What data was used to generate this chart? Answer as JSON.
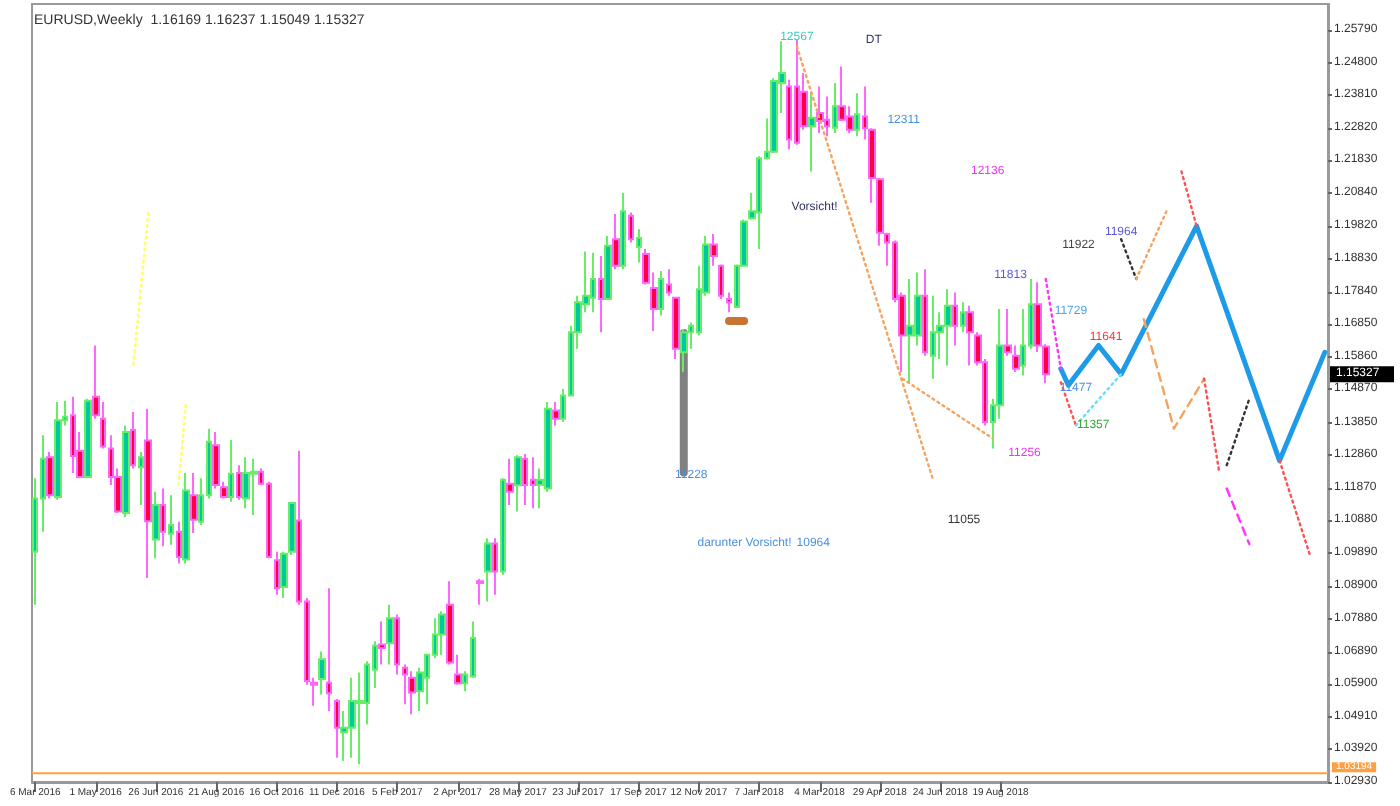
{
  "chart_data": {
    "type": "candlestick",
    "title": "EURUSD,Weekly  1.16169 1.16237 1.15049 1.15327",
    "x": [
      "2016-03-06",
      "2016-03-13",
      "2016-03-20",
      "2016-03-27",
      "2016-04-03",
      "2016-04-10",
      "2016-04-17",
      "2016-04-24",
      "2016-05-01",
      "2016-05-08",
      "2016-05-15",
      "2016-05-22",
      "2016-05-29",
      "2016-06-05",
      "2016-06-12",
      "2016-06-19",
      "2016-06-26",
      "2016-07-03",
      "2016-07-10",
      "2016-07-17",
      "2016-07-24",
      "2016-07-31",
      "2016-08-07",
      "2016-08-14",
      "2016-08-21",
      "2016-08-28",
      "2016-09-04",
      "2016-09-11",
      "2016-09-18",
      "2016-09-25",
      "2016-10-02",
      "2016-10-09",
      "2016-10-16",
      "2016-10-23",
      "2016-10-30",
      "2016-11-06",
      "2016-11-13",
      "2016-11-20",
      "2016-11-27",
      "2016-12-04",
      "2016-12-11",
      "2016-12-18",
      "2016-12-25",
      "2017-01-01",
      "2017-01-08",
      "2017-01-15",
      "2017-01-22",
      "2017-01-29",
      "2017-02-05",
      "2017-02-12",
      "2017-02-19",
      "2017-02-26",
      "2017-03-05",
      "2017-03-12",
      "2017-03-19",
      "2017-03-26",
      "2017-04-02",
      "2017-04-09",
      "2017-04-16",
      "2017-04-23",
      "2017-04-30",
      "2017-05-07",
      "2017-05-14",
      "2017-05-21",
      "2017-05-28",
      "2017-06-04",
      "2017-06-11",
      "2017-06-18",
      "2017-06-25",
      "2017-07-02",
      "2017-07-09",
      "2017-07-16",
      "2017-07-23",
      "2017-07-30",
      "2017-08-06",
      "2017-08-13",
      "2017-08-20",
      "2017-08-27",
      "2017-09-03",
      "2017-09-10",
      "2017-09-17",
      "2017-09-24",
      "2017-10-01",
      "2017-10-08",
      "2017-10-15",
      "2017-10-22",
      "2017-10-29",
      "2017-11-05",
      "2017-11-12",
      "2017-11-19",
      "2017-11-26",
      "2017-12-03",
      "2017-12-10",
      "2017-12-17",
      "2017-12-24",
      "2017-12-31",
      "2018-01-07",
      "2018-01-14",
      "2018-01-21",
      "2018-01-28",
      "2018-02-04",
      "2018-02-11",
      "2018-02-18",
      "2018-02-25",
      "2018-03-04",
      "2018-03-11",
      "2018-03-18",
      "2018-03-25",
      "2018-04-01",
      "2018-04-08",
      "2018-04-15",
      "2018-04-22",
      "2018-04-29",
      "2018-05-06",
      "2018-05-13",
      "2018-05-20",
      "2018-05-27",
      "2018-06-03",
      "2018-06-10",
      "2018-06-17",
      "2018-06-24",
      "2018-07-01",
      "2018-07-08",
      "2018-07-15",
      "2018-07-22",
      "2018-07-29",
      "2018-08-05",
      "2018-08-12",
      "2018-08-19",
      "2018-08-26",
      "2018-09-02",
      "2018-09-09",
      "2018-09-16",
      "2018-09-23",
      "2018-09-30"
    ],
    "ohlc": [
      [
        1.0993,
        1.1216,
        1.0832,
        1.1155
      ],
      [
        1.1155,
        1.1347,
        1.1054,
        1.1276
      ],
      [
        1.128,
        1.1296,
        1.1155,
        1.1165
      ],
      [
        1.1159,
        1.1448,
        1.1151,
        1.1393
      ],
      [
        1.1393,
        1.1452,
        1.1377,
        1.1403
      ],
      [
        1.1408,
        1.1464,
        1.1232,
        1.1284
      ],
      [
        1.13,
        1.1357,
        1.1216,
        1.122
      ],
      [
        1.122,
        1.1458,
        1.1216,
        1.1452
      ],
      [
        1.1464,
        1.162,
        1.1397,
        1.1408
      ],
      [
        1.1397,
        1.1448,
        1.1307,
        1.1313
      ],
      [
        1.1307,
        1.1347,
        1.1196,
        1.122
      ],
      [
        1.122,
        1.1246,
        1.1111,
        1.1115
      ],
      [
        1.1111,
        1.1377,
        1.1098,
        1.1357
      ],
      [
        1.1363,
        1.1418,
        1.1246,
        1.1256
      ],
      [
        1.125,
        1.1296,
        1.1135,
        1.128
      ],
      [
        1.1331,
        1.1428,
        1.0913,
        1.1086
      ],
      [
        1.103,
        1.1175,
        1.0973,
        1.1135
      ],
      [
        1.1135,
        1.1185,
        1.101,
        1.1054
      ],
      [
        1.1048,
        1.1165,
        1.1014,
        1.1074
      ],
      [
        1.1054,
        1.1084,
        1.0957,
        1.0977
      ],
      [
        1.0969,
        1.1232,
        1.0957,
        1.1179
      ],
      [
        1.1165,
        1.1232,
        1.105,
        1.109
      ],
      [
        1.1084,
        1.1216,
        1.1074,
        1.1165
      ],
      [
        1.1165,
        1.1367,
        1.1155,
        1.1327
      ],
      [
        1.1317,
        1.1357,
        1.1185,
        1.1196
      ],
      [
        1.1189,
        1.1206,
        1.1155,
        1.1159
      ],
      [
        1.1159,
        1.1333,
        1.1145,
        1.123
      ],
      [
        1.1232,
        1.1256,
        1.1151,
        1.1159
      ],
      [
        1.1155,
        1.128,
        1.1125,
        1.1232
      ],
      [
        1.123,
        1.1276,
        1.1105,
        1.1236
      ],
      [
        1.1236,
        1.1246,
        1.1196,
        1.12
      ],
      [
        1.12,
        1.1206,
        1.0973,
        1.0977
      ],
      [
        1.0967,
        1.0993,
        1.0862,
        1.0882
      ],
      [
        1.0886,
        1.0993,
        1.0852,
        1.0987
      ],
      [
        1.0993,
        1.1145,
        1.0983,
        1.1141
      ],
      [
        1.1088,
        1.13,
        1.0832,
        1.0842
      ],
      [
        1.0842,
        1.0852,
        1.0589,
        1.06
      ],
      [
        1.0595,
        1.061,
        1.0525,
        1.0589
      ],
      [
        1.0606,
        1.069,
        1.0559,
        1.0666
      ],
      [
        1.0595,
        1.0882,
        1.0509,
        1.0563
      ],
      [
        1.0539,
        1.0545,
        1.0367,
        1.0458
      ],
      [
        1.0444,
        1.0509,
        1.0357,
        1.0458
      ],
      [
        1.0458,
        1.061,
        1.0367,
        1.0539
      ],
      [
        1.0533,
        1.0626,
        1.0347,
        1.0539
      ],
      [
        1.0533,
        1.066,
        1.0468,
        1.065
      ],
      [
        1.0634,
        1.0721,
        1.0579,
        1.0707
      ],
      [
        1.0711,
        1.0781,
        1.065,
        1.07
      ],
      [
        1.0715,
        1.0832,
        1.065,
        1.0791
      ],
      [
        1.0791,
        1.0802,
        1.062,
        1.065
      ],
      [
        1.064,
        1.065,
        1.0529,
        1.062
      ],
      [
        1.061,
        1.063,
        1.0499,
        1.0565
      ],
      [
        1.0569,
        1.064,
        1.0509,
        1.0626
      ],
      [
        1.061,
        1.068,
        1.0529,
        1.068
      ],
      [
        1.068,
        1.0791,
        1.067,
        1.0741
      ],
      [
        1.0741,
        1.0812,
        1.068,
        1.0802
      ],
      [
        1.0832,
        1.0903,
        1.065,
        1.0656
      ],
      [
        1.062,
        1.068,
        1.0589,
        1.0593
      ],
      [
        1.0593,
        1.063,
        1.0569,
        1.062
      ],
      [
        1.0614,
        1.0781,
        1.061,
        1.0731
      ],
      [
        1.0903,
        1.091,
        1.0832,
        1.0898
      ],
      [
        1.0933,
        1.1034,
        1.0842,
        1.1018
      ],
      [
        1.1018,
        1.1034,
        1.0862,
        1.0933
      ],
      [
        1.0933,
        1.1216,
        1.0923,
        1.1212
      ],
      [
        1.12,
        1.1276,
        1.1135,
        1.1175
      ],
      [
        1.1195,
        1.1286,
        1.1115,
        1.128
      ],
      [
        1.1276,
        1.129,
        1.1135,
        1.1196
      ],
      [
        1.1212,
        1.128,
        1.1125,
        1.1196
      ],
      [
        1.1196,
        1.1246,
        1.1125,
        1.1212
      ],
      [
        1.1185,
        1.1448,
        1.1175,
        1.1428
      ],
      [
        1.1422,
        1.1448,
        1.1377,
        1.1397
      ],
      [
        1.1397,
        1.1488,
        1.1387,
        1.1468
      ],
      [
        1.1468,
        1.168,
        1.1468,
        1.166
      ],
      [
        1.166,
        1.1771,
        1.161,
        1.1751
      ],
      [
        1.1745,
        1.1906,
        1.1721,
        1.1771
      ],
      [
        1.1765,
        1.1902,
        1.1721,
        1.1822
      ],
      [
        1.1822,
        1.1892,
        1.166,
        1.1761
      ],
      [
        1.1761,
        1.1953,
        1.1761,
        1.1923
      ],
      [
        1.1943,
        1.202,
        1.1852,
        1.1862
      ],
      [
        1.1862,
        1.2084,
        1.1852,
        1.2028
      ],
      [
        1.2014,
        1.2024,
        1.1933,
        1.1943
      ],
      [
        1.1919,
        1.1973,
        1.1872,
        1.1947
      ],
      [
        1.1898,
        1.1913,
        1.1805,
        1.1811
      ],
      [
        1.1795,
        1.1842,
        1.1664,
        1.1731
      ],
      [
        1.1731,
        1.1846,
        1.1711,
        1.1822
      ],
      [
        1.1805,
        1.1852,
        1.1771,
        1.1781
      ],
      [
        1.1765,
        1.1765,
        1.1579,
        1.161
      ],
      [
        1.1599,
        1.167,
        1.1539,
        1.166
      ],
      [
        1.166,
        1.169,
        1.161,
        1.168
      ],
      [
        1.166,
        1.1862,
        1.165,
        1.1791
      ],
      [
        1.1781,
        1.1953,
        1.1771,
        1.1927
      ],
      [
        1.1927,
        1.1959,
        1.1862,
        1.1892
      ],
      [
        1.1862,
        1.1866,
        1.1761,
        1.1771
      ],
      [
        1.1761,
        1.1781,
        1.1721,
        1.1751
      ],
      [
        1.1737,
        1.1866,
        1.1737,
        1.1862
      ],
      [
        1.1862,
        1.2003,
        1.1862,
        1.1997
      ],
      [
        1.2007,
        1.2084,
        1.2003,
        1.2028
      ],
      [
        1.2024,
        1.2195,
        1.1913,
        1.2189
      ],
      [
        1.2189,
        1.231,
        1.2185,
        1.2209
      ],
      [
        1.2209,
        1.2432,
        1.2205,
        1.2424
      ],
      [
        1.2418,
        1.2545,
        1.2327,
        1.2448
      ],
      [
        1.2407,
        1.2428,
        1.2216,
        1.2246
      ],
      [
        1.2407,
        1.2549,
        1.223,
        1.2236
      ],
      [
        1.2391,
        1.2448,
        1.2276,
        1.2286
      ],
      [
        1.2286,
        1.2387,
        1.2149,
        1.2312
      ],
      [
        1.2327,
        1.2407,
        1.2266,
        1.2302
      ],
      [
        1.2306,
        1.2377,
        1.2256,
        1.2286
      ],
      [
        1.2282,
        1.2418,
        1.2266,
        1.2347
      ],
      [
        1.2347,
        1.2468,
        1.2302,
        1.2306
      ],
      [
        1.2316,
        1.2347,
        1.2266,
        1.2276
      ],
      [
        1.2276,
        1.2387,
        1.2256,
        1.2323
      ],
      [
        1.2316,
        1.2407,
        1.2246,
        1.228
      ],
      [
        1.2276,
        1.228,
        1.2054,
        1.2129
      ],
      [
        1.2125,
        1.2129,
        1.1923,
        1.1963
      ],
      [
        1.1959,
        1.1963,
        1.1862,
        1.1933
      ],
      [
        1.1933,
        1.1939,
        1.1751,
        1.1761
      ],
      [
        1.1771,
        1.1781,
        1.1539,
        1.165
      ],
      [
        1.165,
        1.1822,
        1.1509,
        1.168
      ],
      [
        1.165,
        1.1842,
        1.162,
        1.1771
      ],
      [
        1.1771,
        1.1852,
        1.1589,
        1.1599
      ],
      [
        1.1589,
        1.1771,
        1.1519,
        1.166
      ],
      [
        1.166,
        1.1721,
        1.1579,
        1.168
      ],
      [
        1.168,
        1.1791,
        1.1559,
        1.1741
      ],
      [
        1.1741,
        1.1781,
        1.162,
        1.168
      ],
      [
        1.168,
        1.1751,
        1.166,
        1.1721
      ],
      [
        1.1721,
        1.1741,
        1.1559,
        1.166
      ],
      [
        1.165,
        1.166,
        1.1559,
        1.1569
      ],
      [
        1.1569,
        1.1579,
        1.1377,
        1.1387
      ],
      [
        1.1387,
        1.1458,
        1.1307,
        1.1438
      ],
      [
        1.1438,
        1.1731,
        1.1397,
        1.162
      ],
      [
        1.162,
        1.1731,
        1.1589,
        1.1599
      ],
      [
        1.1589,
        1.162,
        1.1539,
        1.1549
      ],
      [
        1.1559,
        1.1731,
        1.1529,
        1.162
      ],
      [
        1.162,
        1.1822,
        1.161,
        1.1745
      ],
      [
        1.1745,
        1.1812,
        1.16,
        1.162
      ],
      [
        1.16169,
        1.16237,
        1.15049,
        1.15327
      ]
    ],
    "series": [
      {
        "type": "line",
        "color": "#1e9be8",
        "line_style": "solid",
        "x": [
          "2018-10-14",
          "2018-10-21",
          "2018-11-18",
          "2018-12-09",
          "2019-02-17",
          "2019-05-05",
          "2019-06-16"
        ],
        "values": [
          1.1549,
          1.1499,
          1.162,
          1.1533,
          1.1983,
          1.127,
          1.1599
        ]
      },
      {
        "type": "line",
        "color": "#f4a460",
        "line_style": "dotted",
        "x": [
          "2018-02-11",
          "2018-06-17"
        ],
        "values": [
          1.2529,
          1.1216
        ]
      },
      {
        "type": "line",
        "color": "#f4a460",
        "line_style": "dotted",
        "x": [
          "2018-05-20",
          "2018-08-12"
        ],
        "values": [
          1.1519,
          1.1337
        ]
      },
      {
        "type": "line",
        "color": "#ff33ff",
        "line_style": "dotted",
        "x": [
          "2018-09-30",
          "2018-10-14"
        ],
        "values": [
          1.1822,
          1.1549
        ]
      },
      {
        "type": "line",
        "color": "#ff5050",
        "line_style": "dotted",
        "x": [
          "2018-10-14",
          "2018-10-28"
        ],
        "values": [
          1.1508,
          1.1377
        ]
      },
      {
        "type": "line",
        "color": "#66e0ff",
        "line_style": "dotted",
        "x": [
          "2018-10-28",
          "2018-12-09"
        ],
        "values": [
          1.1377,
          1.1533
        ]
      },
      {
        "type": "line",
        "color": "#333333",
        "line_style": "dotted",
        "x": [
          "2018-12-09",
          "2018-12-23"
        ],
        "values": [
          1.1943,
          1.1822
        ]
      },
      {
        "type": "line",
        "color": "#f4a460",
        "line_style": "dotted",
        "x": [
          "2018-12-23",
          "2019-01-20"
        ],
        "values": [
          1.1822,
          1.2028
        ]
      },
      {
        "type": "line",
        "color": "#f4a460",
        "line_style": "dashed",
        "x": [
          "2018-12-30",
          "2019-01-27",
          "2019-02-24"
        ],
        "values": [
          1.17,
          1.1367,
          1.1519
        ]
      },
      {
        "type": "line",
        "color": "#ff5050",
        "line_style": "dotted",
        "x": [
          "2019-02-24",
          "2019-03-10"
        ],
        "values": [
          1.1519,
          1.1236
        ]
      },
      {
        "type": "line",
        "color": "#ff5050",
        "line_style": "dotted",
        "x": [
          "2019-02-03",
          "2019-02-17"
        ],
        "values": [
          1.2149,
          1.1983
        ]
      },
      {
        "type": "line",
        "color": "#333333",
        "line_style": "dotted",
        "x": [
          "2019-03-17",
          "2019-04-07"
        ],
        "values": [
          1.1256,
          1.1458
        ]
      },
      {
        "type": "line",
        "color": "#ff33ff",
        "line_style": "dashed",
        "x": [
          "2019-03-17",
          "2019-04-07"
        ],
        "values": [
          1.1185,
          1.1016
        ]
      },
      {
        "type": "line",
        "color": "#ff5050",
        "line_style": "dotted",
        "x": [
          "2019-05-05",
          "2019-06-02"
        ],
        "values": [
          1.127,
          1.0985
        ]
      },
      {
        "type": "line",
        "color": "#ffff66",
        "line_style": "dotted",
        "x": [
          "2016-06-05",
          "2016-06-19"
        ],
        "values": [
          1.1563,
          1.2023
        ]
      },
      {
        "type": "line",
        "color": "#ffff66",
        "line_style": "dotted",
        "x": [
          "2016-07-17",
          "2016-07-24"
        ],
        "values": [
          1.1197,
          1.1448
        ]
      },
      {
        "type": "line",
        "color": "#808080",
        "line_style": "solid",
        "x": [
          "2017-10-29",
          "2017-10-29"
        ],
        "values": [
          1.1658,
          1.1234
        ]
      },
      {
        "type": "line",
        "color": "#c87533",
        "line_style": "solid",
        "x": [
          "2017-12-10",
          "2017-12-24"
        ],
        "values": [
          1.1694,
          1.1694
        ]
      }
    ],
    "annotations": [
      {
        "text": "12567",
        "x": "2018-02-11",
        "y": 1.2555
      },
      "DT",
      "12311",
      "Vorsicht!",
      "12136",
      "11922",
      {
        "text": "11964",
        "x": "2018-12-09",
        "y": 1.1963
      },
      "11813",
      "11729",
      {
        "text": "11641",
        "x": "2018-11-25",
        "y": 1.1644
      },
      {
        "text": "11477",
        "x": "2018-10-28",
        "y": 1.1488
      },
      "11357",
      "11256",
      "11055",
      {
        "text": "11228",
        "x": "2017-11-05",
        "y": 1.1224
      },
      "darunter Vorsicht!",
      "10964",
      "1.15327"
    ],
    "ref_lines": [
      {
        "axis": "y",
        "value": 1.03194,
        "label": "1.03194",
        "color": "#ffa040"
      }
    ],
    "xlim": [
      "2016-03-03",
      "2019-06-19"
    ],
    "xticks": [
      {
        "value": "2016-03-06",
        "label": "6 Mar 2016"
      },
      {
        "value": "2016-05-01",
        "label": "1 May 2016"
      },
      {
        "value": "2016-06-26",
        "label": "26 Jun 2016"
      },
      {
        "value": "2016-08-21",
        "label": "21 Aug 2016"
      },
      {
        "value": "2016-10-16",
        "label": "16 Oct 2016"
      },
      {
        "value": "2016-12-11",
        "label": "11 Dec 2016"
      },
      {
        "value": "2017-02-05",
        "label": "5 Feb 2017"
      },
      {
        "value": "2017-04-02",
        "label": "2 Apr 2017"
      },
      {
        "value": "2017-05-28",
        "label": "28 May 2017"
      },
      {
        "value": "2017-07-23",
        "label": "23 Jul 2017"
      },
      {
        "value": "2017-09-17",
        "label": "17 Sep 2017"
      },
      {
        "value": "2017-11-12",
        "label": "12 Nov 2017"
      },
      {
        "value": "2018-01-07",
        "label": "7 Jan 2018"
      },
      {
        "value": "2018-03-04",
        "label": "4 Mar 2018"
      },
      {
        "value": "2018-04-29",
        "label": "29 Apr 2018"
      },
      {
        "value": "2018-06-24",
        "label": "24 Jun 2018"
      },
      {
        "value": "2018-08-19",
        "label": "19 Aug 2018"
      }
    ],
    "ylim": [
      1.0293,
      1.2658
    ],
    "yticks": [
      {
        "value": 1.2579,
        "label": "1.25790"
      },
      {
        "value": 1.248,
        "label": "1.24800"
      },
      {
        "value": 1.2381,
        "label": "1.23810"
      },
      {
        "value": 1.2282,
        "label": "1.22820"
      },
      {
        "value": 1.2183,
        "label": "1.21830"
      },
      {
        "value": 1.2084,
        "label": "1.20840"
      },
      {
        "value": 1.1982,
        "label": "1.19820"
      },
      {
        "value": 1.1883,
        "label": "1.18830"
      },
      {
        "value": 1.1784,
        "label": "1.17840"
      },
      {
        "value": 1.1685,
        "label": "1.16850"
      },
      {
        "value": 1.1586,
        "label": "1.15860"
      },
      {
        "value": 1.1487,
        "label": "1.14870"
      },
      {
        "value": 1.1385,
        "label": "1.13850"
      },
      {
        "value": 1.1286,
        "label": "1.12860"
      },
      {
        "value": 1.1187,
        "label": "1.11870"
      },
      {
        "value": 1.1088,
        "label": "1.10880"
      },
      {
        "value": 1.0989,
        "label": "1.09890"
      },
      {
        "value": 1.089,
        "label": "1.08900"
      },
      {
        "value": 1.0788,
        "label": "1.07880"
      },
      {
        "value": 1.0689,
        "label": "1.06890"
      },
      {
        "value": 1.059,
        "label": "1.05900"
      },
      {
        "value": 1.0491,
        "label": "1.04910"
      },
      {
        "value": 1.0392,
        "label": "1.03920"
      },
      {
        "value": 1.0293,
        "label": "1.02930"
      }
    ],
    "marker": "none"
  }
}
